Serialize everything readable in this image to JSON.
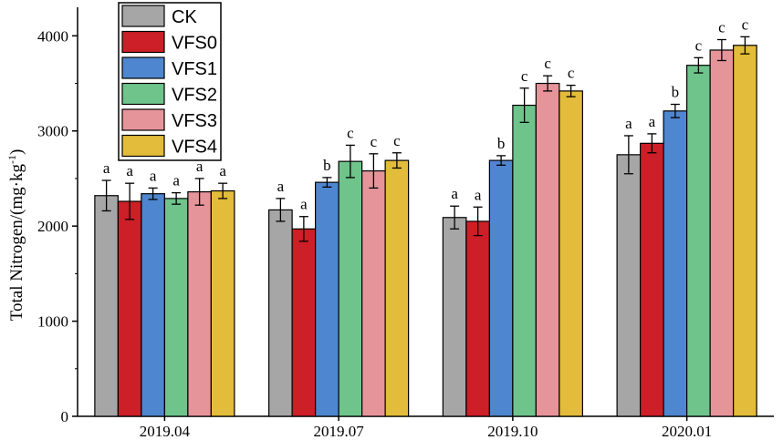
{
  "chart_data": {
    "type": "bar",
    "title": "",
    "xlabel": "",
    "ylabel": "Total Nitrogen/(mg·kg",
    "ylabel_superscript": "-1",
    "ylabel_suffix": ")",
    "ylim": [
      0,
      4300
    ],
    "yticks": [
      0,
      1000,
      2000,
      3000,
      4000
    ],
    "ytick_labels": [
      "0",
      "1000",
      "2000",
      "3000",
      "4000"
    ],
    "categories": [
      "2019.04",
      "2019.07",
      "2019.10",
      "2020.01"
    ],
    "legend_position": "top-left",
    "series": [
      {
        "name": "CK",
        "color": "#a6a6a6",
        "values": [
          2320,
          2170,
          2090,
          2750
        ],
        "errors": [
          160,
          120,
          120,
          200
        ],
        "letters": [
          "a",
          "a",
          "a",
          "a"
        ]
      },
      {
        "name": "VFS0",
        "color": "#cc1f27",
        "values": [
          2260,
          1970,
          2050,
          2870
        ],
        "errors": [
          190,
          130,
          150,
          100
        ],
        "letters": [
          "a",
          "a",
          "a",
          "a"
        ]
      },
      {
        "name": "VFS1",
        "color": "#4e86cf",
        "values": [
          2340,
          2460,
          2690,
          3210
        ],
        "errors": [
          60,
          50,
          50,
          70
        ],
        "letters": [
          "a",
          "b",
          "b",
          "b"
        ]
      },
      {
        "name": "VFS2",
        "color": "#6ec48b",
        "values": [
          2290,
          2680,
          3270,
          3690
        ],
        "errors": [
          60,
          170,
          180,
          80
        ],
        "letters": [
          "a",
          "c",
          "c",
          "c"
        ]
      },
      {
        "name": "VFS3",
        "color": "#e5949a",
        "values": [
          2360,
          2580,
          3500,
          3850
        ],
        "errors": [
          140,
          180,
          80,
          110
        ],
        "letters": [
          "a",
          "c",
          "c",
          "c"
        ]
      },
      {
        "name": "VFS4",
        "color": "#e2bc3a",
        "values": [
          2370,
          2690,
          3420,
          3900
        ],
        "errors": [
          80,
          80,
          60,
          90
        ],
        "letters": [
          "a",
          "c",
          "c",
          "c"
        ]
      }
    ]
  }
}
